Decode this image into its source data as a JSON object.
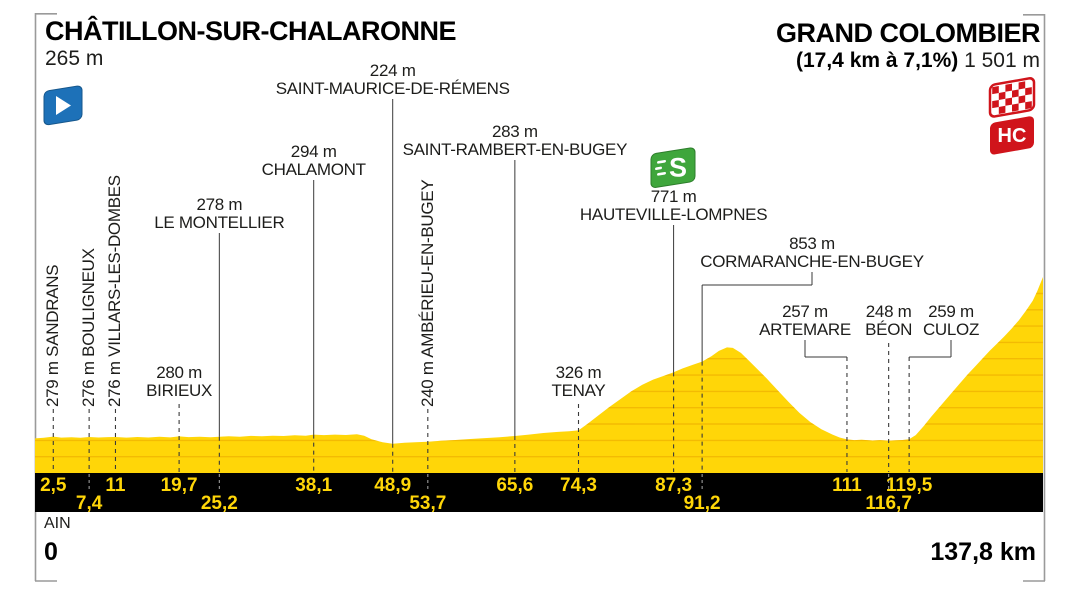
{
  "header": {
    "start": {
      "name": "CHÂTILLON-SUR-CHALARONNE",
      "elevation": "265 m"
    },
    "finish": {
      "name": "GRAND COLOMBIER",
      "climb_stats": "(17,4 km à 7,1%)",
      "elevation": "1 501 m",
      "category_badge": "HC"
    }
  },
  "footer": {
    "department": "AIN",
    "start_km_label": "0",
    "total_distance_label": "137,8 km"
  },
  "icons": {
    "start_flag": "depart-flag-icon",
    "sprint": "sprint-icon",
    "finish_flag": "finish-checkered-flag-icon",
    "hc_badge": "hors-categorie-badge"
  },
  "colors": {
    "profile_yellow": "#FFD608",
    "stripe": "#EAA500",
    "bar_black": "#000000",
    "km_text_yellow": "#FFD608",
    "frame_gray": "#9A9A9A",
    "leader_gray": "#3a3a3a",
    "flag_blue": "#1D71B8",
    "sprint_green": "#3FA63C",
    "finish_red": "#D0141B"
  },
  "chart_data": {
    "type": "area",
    "title": "Stage profile — Châtillon-sur-Chalaronne to Grand Colombier",
    "x_unit": "km",
    "y_unit": "m",
    "x_range": [
      0,
      137.8
    ],
    "y_range": [
      0,
      1501
    ],
    "y_gridline_interval_m": 125,
    "start": {
      "km": 0,
      "elevation_m": 265,
      "name": "CHÂTILLON-SUR-CHALARONNE"
    },
    "finish": {
      "km": 137.8,
      "elevation_m": 1501,
      "name": "GRAND COLOMBIER",
      "climb_length_km": 17.4,
      "climb_avg_gradient_pct": 7.1,
      "category": "HC"
    },
    "waypoints": [
      {
        "km": 2.5,
        "elevation_m": 279,
        "name": "SANDRANS",
        "elevation_label": "279 m",
        "km_label": "2,5",
        "km_row": 1,
        "style": "vertical",
        "leader": "dashed"
      },
      {
        "km": 7.4,
        "elevation_m": 276,
        "name": "BOULIGNEUX",
        "elevation_label": "276 m",
        "km_label": "7,4",
        "km_row": 2,
        "style": "vertical",
        "leader": "dashed"
      },
      {
        "km": 11,
        "elevation_m": 276,
        "name": "VILLARS-LES-DOMBES",
        "elevation_label": "276 m",
        "km_label": "11",
        "km_row": 1,
        "style": "vertical",
        "leader": "dashed"
      },
      {
        "km": 19.7,
        "elevation_m": 280,
        "name": "BIRIEUX",
        "elevation_label": "280 m",
        "km_label": "19,7",
        "km_row": 1,
        "style": "horizontal",
        "label_top": 364,
        "leader": "dashed"
      },
      {
        "km": 25.2,
        "elevation_m": 278,
        "name": "LE MONTELLIER",
        "elevation_label": "278 m",
        "km_label": "25,2",
        "km_row": 2,
        "style": "horizontal",
        "label_top": 196,
        "leader": "solid"
      },
      {
        "km": 38.1,
        "elevation_m": 294,
        "name": "CHALAMONT",
        "elevation_label": "294 m",
        "km_label": "38,1",
        "km_row": 1,
        "style": "horizontal",
        "label_top": 143,
        "leader": "solid"
      },
      {
        "km": 48.9,
        "elevation_m": 224,
        "name": "SAINT-MAURICE-DE-RÉMENS",
        "elevation_label": "224 m",
        "km_label": "48,9",
        "km_row": 1,
        "style": "horizontal",
        "label_top": 62,
        "leader": "solid"
      },
      {
        "km": 53.7,
        "elevation_m": 240,
        "name": "AMBÉRIEU-EN-BUGEY",
        "elevation_label": "240 m",
        "km_label": "53,7",
        "km_row": 2,
        "style": "vertical",
        "leader": "dashed"
      },
      {
        "km": 65.6,
        "elevation_m": 283,
        "name": "SAINT-RAMBERT-EN-BUGEY",
        "elevation_label": "283 m",
        "km_label": "65,6",
        "km_row": 1,
        "style": "horizontal",
        "label_top": 123,
        "leader": "solid"
      },
      {
        "km": 74.3,
        "elevation_m": 326,
        "name": "TENAY",
        "elevation_label": "326 m",
        "km_label": "74,3",
        "km_row": 1,
        "style": "horizontal",
        "label_top": 364,
        "leader": "dashed"
      },
      {
        "km": 87.3,
        "elevation_m": 771,
        "name": "HAUTEVILLE-LOMPNES",
        "elevation_label": "771 m",
        "km_label": "87,3",
        "km_row": 1,
        "style": "horizontal",
        "label_top": 188,
        "leader": "solid",
        "icon": "sprint"
      },
      {
        "km": 91.2,
        "elevation_m": 853,
        "name": "CORMARANCHE-EN-BUGEY",
        "elevation_label": "853 m",
        "km_label": "91,2",
        "km_row": 2,
        "style": "horizontal",
        "label_top": 235,
        "label_cx": 812,
        "leader": "elbow-solid",
        "elbow_y": 285
      },
      {
        "km": 111,
        "elevation_m": 257,
        "name": "ARTEMARE",
        "elevation_label": "257 m",
        "km_label": "111",
        "km_row": 1,
        "style": "horizontal",
        "label_top": 303,
        "label_cx": 805,
        "leader": "elbow-dashed",
        "elbow_y": 357
      },
      {
        "km": 116.7,
        "elevation_m": 248,
        "name": "BÉON",
        "elevation_label": "248 m",
        "km_label": "116,7",
        "km_row": 2,
        "style": "horizontal",
        "label_top": 303,
        "leader": "dashed"
      },
      {
        "km": 119.5,
        "elevation_m": 259,
        "name": "CULOZ",
        "elevation_label": "259 m",
        "km_label": "119,5",
        "km_row": 1,
        "style": "horizontal",
        "label_top": 303,
        "label_cx": 951,
        "leader": "elbow-dashed",
        "elbow_y": 357
      }
    ],
    "profile_points": [
      [
        0,
        265
      ],
      [
        1.2,
        270
      ],
      [
        2.5,
        279
      ],
      [
        3.6,
        271
      ],
      [
        5,
        274
      ],
      [
        6.2,
        270
      ],
      [
        7.4,
        276
      ],
      [
        8.7,
        272
      ],
      [
        10,
        275
      ],
      [
        11,
        276
      ],
      [
        12.5,
        271
      ],
      [
        14,
        276
      ],
      [
        15.5,
        272
      ],
      [
        17,
        277
      ],
      [
        18.5,
        273
      ],
      [
        19.7,
        280
      ],
      [
        21,
        275
      ],
      [
        22.5,
        278
      ],
      [
        24,
        274
      ],
      [
        25.2,
        278
      ],
      [
        26.5,
        281
      ],
      [
        28,
        278
      ],
      [
        29.5,
        284
      ],
      [
        31,
        281
      ],
      [
        32.5,
        286
      ],
      [
        34,
        283
      ],
      [
        35.5,
        289
      ],
      [
        37,
        286
      ],
      [
        38.1,
        294
      ],
      [
        39.5,
        290
      ],
      [
        41,
        294
      ],
      [
        42.5,
        291
      ],
      [
        44,
        296
      ],
      [
        45,
        285
      ],
      [
        46,
        258
      ],
      [
        47.5,
        236
      ],
      [
        48.9,
        224
      ],
      [
        50.5,
        231
      ],
      [
        52,
        236
      ],
      [
        53.7,
        240
      ],
      [
        55.5,
        247
      ],
      [
        57.5,
        253
      ],
      [
        59.5,
        260
      ],
      [
        61.5,
        267
      ],
      [
        63.5,
        274
      ],
      [
        65.6,
        283
      ],
      [
        67.5,
        294
      ],
      [
        69.5,
        306
      ],
      [
        71.5,
        315
      ],
      [
        73,
        320
      ],
      [
        74.3,
        326
      ],
      [
        75.5,
        375
      ],
      [
        77,
        440
      ],
      [
        78.5,
        505
      ],
      [
        80,
        565
      ],
      [
        81.5,
        625
      ],
      [
        83,
        675
      ],
      [
        84.5,
        715
      ],
      [
        86,
        745
      ],
      [
        87.3,
        771
      ],
      [
        88.5,
        800
      ],
      [
        90,
        830
      ],
      [
        91.2,
        853
      ],
      [
        92.5,
        895
      ],
      [
        93.5,
        935
      ],
      [
        94.6,
        962
      ],
      [
        95.4,
        958
      ],
      [
        96.5,
        920
      ],
      [
        97.5,
        865
      ],
      [
        98.5,
        810
      ],
      [
        100,
        725
      ],
      [
        101.5,
        635
      ],
      [
        103,
        545
      ],
      [
        104.5,
        460
      ],
      [
        106,
        390
      ],
      [
        107.5,
        335
      ],
      [
        109,
        295
      ],
      [
        110,
        272
      ],
      [
        111,
        257
      ],
      [
        112,
        252
      ],
      [
        113,
        254
      ],
      [
        114.5,
        249
      ],
      [
        115.5,
        252
      ],
      [
        116.7,
        248
      ],
      [
        117.8,
        251
      ],
      [
        118.6,
        253
      ],
      [
        119.5,
        259
      ],
      [
        120.4,
        290
      ],
      [
        121.5,
        360
      ],
      [
        122.5,
        430
      ],
      [
        123.5,
        495
      ],
      [
        124.5,
        560
      ],
      [
        125.5,
        625
      ],
      [
        126.5,
        690
      ],
      [
        127.5,
        755
      ],
      [
        128.5,
        815
      ],
      [
        129.5,
        875
      ],
      [
        130.5,
        935
      ],
      [
        131.5,
        990
      ],
      [
        132.5,
        1045
      ],
      [
        133.5,
        1105
      ],
      [
        134.5,
        1170
      ],
      [
        135.5,
        1245
      ],
      [
        136.4,
        1320
      ],
      [
        137,
        1390
      ],
      [
        137.8,
        1501
      ]
    ]
  }
}
